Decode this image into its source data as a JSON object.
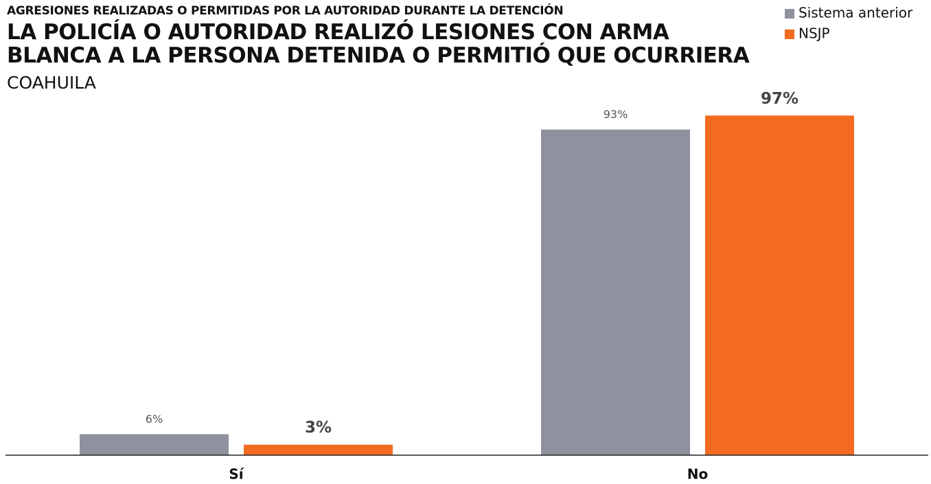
{
  "chart_data": {
    "type": "bar",
    "supertitle": "AGRESIONES REALIZADAS O PERMITIDAS POR LA AUTORIDAD DURANTE LA DETENCIÓN",
    "title": "LA POLICÍA O AUTORIDAD REALIZÓ LESIONES CON ARMA BLANCA A LA PERSONA DETENIDA O PERMITIÓ QUE OCURRIERA",
    "subtitle": "COAHUILA",
    "categories": [
      "Sí",
      "No"
    ],
    "series": [
      {
        "name": "Sistema anterior",
        "color": "#8e929e",
        "values": [
          6,
          93
        ],
        "value_labels": [
          "6%",
          "93%"
        ]
      },
      {
        "name": "NSJP",
        "color": "#f26b21",
        "values": [
          3,
          97
        ],
        "value_labels": [
          "3%",
          "97%"
        ]
      }
    ],
    "ylim": [
      0,
      100
    ],
    "legend": "top-right"
  }
}
